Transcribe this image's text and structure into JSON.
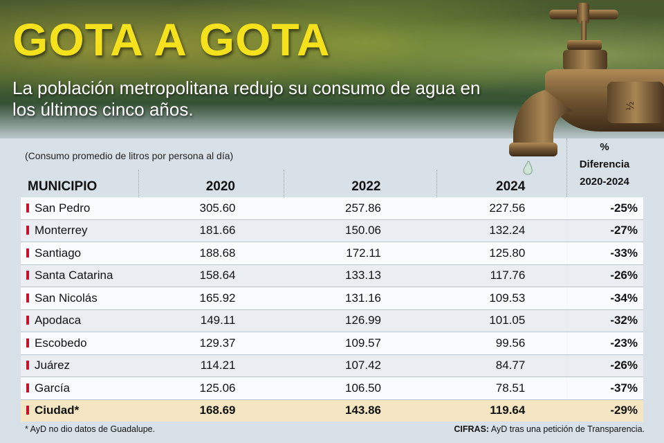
{
  "header": {
    "title": "GOTA A GOTA",
    "subtitle": "La población metropolitana redujo su consumo de agua en los últimos cinco años."
  },
  "table_note": "(Consumo promedio de litros por persona al día)",
  "columns": {
    "municipio": "MUNICIPIO",
    "y2020": "2020",
    "y2022": "2022",
    "y2024": "2024",
    "diff_line1": "%",
    "diff_line2": "Diferencia",
    "diff_line3": "2020-2024"
  },
  "rows": [
    {
      "municipio": "San Pedro",
      "y2020": "305.60",
      "y2022": "257.86",
      "y2024": "227.56",
      "diff": "-25%"
    },
    {
      "municipio": "Monterrey",
      "y2020": "181.66",
      "y2022": "150.06",
      "y2024": "132.24",
      "diff": "-27%"
    },
    {
      "municipio": "Santiago",
      "y2020": "188.68",
      "y2022": "172.11",
      "y2024": "125.80",
      "diff": "-33%"
    },
    {
      "municipio": "Santa Catarina",
      "y2020": "158.64",
      "y2022": "133.13",
      "y2024": "117.76",
      "diff": "-26%"
    },
    {
      "municipio": "San Nicolás",
      "y2020": "165.92",
      "y2022": "131.16",
      "y2024": "109.53",
      "diff": "-34%"
    },
    {
      "municipio": "Apodaca",
      "y2020": "149.11",
      "y2022": "126.99",
      "y2024": "101.05",
      "diff": "-32%"
    },
    {
      "municipio": "Escobedo",
      "y2020": "129.37",
      "y2022": "109.57",
      "y2024": "99.56",
      "diff": "-23%"
    },
    {
      "municipio": "Juárez",
      "y2020": "114.21",
      "y2022": "107.42",
      "y2024": "84.77",
      "diff": "-26%"
    },
    {
      "municipio": "García",
      "y2020": "125.06",
      "y2022": "106.50",
      "y2024": "78.51",
      "diff": "-37%"
    }
  ],
  "total": {
    "municipio": "Ciudad*",
    "y2020": "168.69",
    "y2022": "143.86",
    "y2024": "119.64",
    "diff": "-29%"
  },
  "footer": {
    "note": "* AyD no dio datos de Guadalupe.",
    "source_label": "CIFRAS:",
    "source_text": " AyD tras una petición  de Transparencia."
  },
  "colors": {
    "title": "#f5e21c",
    "row_marker": "#c8102e",
    "total_row": "#f4e6c2"
  },
  "icons": [
    "water-faucet-icon"
  ]
}
